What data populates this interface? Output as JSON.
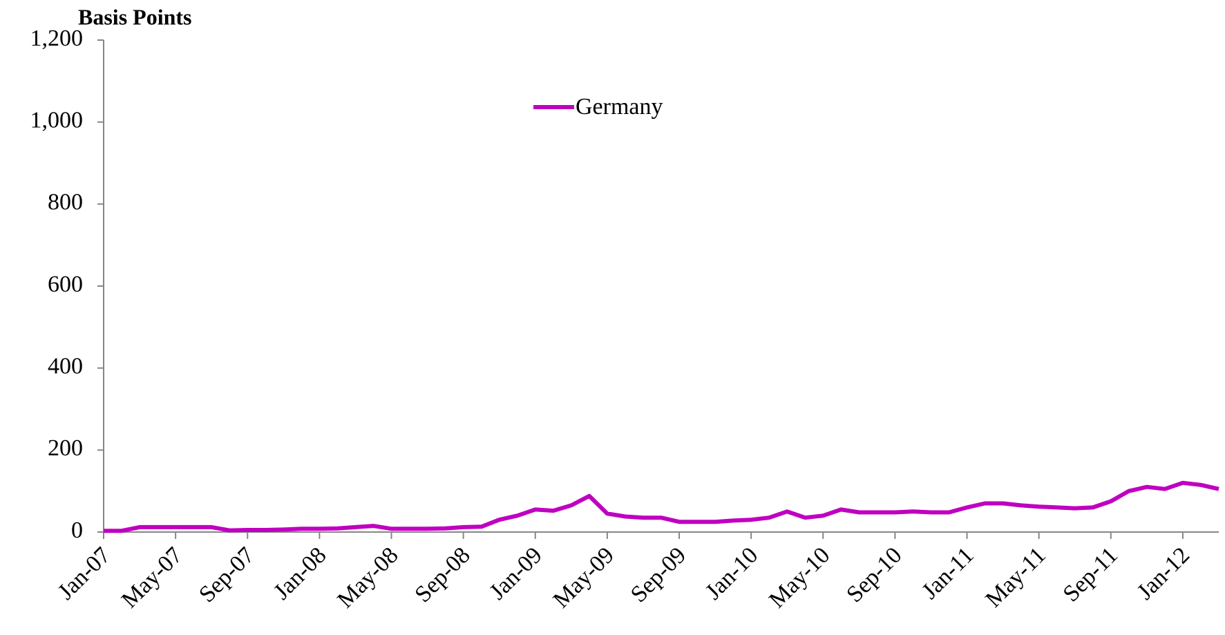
{
  "chart_data": {
    "type": "line",
    "title": "Basis Points",
    "categories": [
      "Jan-07",
      null,
      null,
      null,
      "May-07",
      null,
      null,
      null,
      "Sep-07",
      null,
      null,
      null,
      "Jan-08",
      null,
      null,
      null,
      "May-08",
      null,
      null,
      null,
      "Sep-08",
      null,
      null,
      null,
      "Jan-09",
      null,
      null,
      null,
      "May-09",
      null,
      null,
      null,
      "Sep-09",
      null,
      null,
      null,
      "Jan-10",
      null,
      null,
      null,
      "May-10",
      null,
      null,
      null,
      "Sep-10",
      null,
      null,
      null,
      "Jan-11",
      null,
      null,
      null,
      "May-11",
      null,
      null,
      null,
      "Sep-11",
      null,
      null,
      null,
      "Jan-12",
      null,
      null
    ],
    "series": [
      {
        "name": "Germany",
        "color": "#c000c0",
        "values": [
          3,
          3,
          12,
          12,
          12,
          12,
          12,
          4,
          5,
          5,
          6,
          8,
          8,
          9,
          12,
          15,
          8,
          8,
          8,
          9,
          12,
          13,
          30,
          40,
          55,
          52,
          65,
          88,
          45,
          38,
          35,
          35,
          25,
          25,
          25,
          28,
          30,
          35,
          50,
          35,
          40,
          55,
          48,
          48,
          48,
          50,
          48,
          48,
          60,
          70,
          70,
          65,
          62,
          60,
          58,
          60,
          75,
          100,
          110,
          105,
          120,
          115,
          105
        ]
      }
    ],
    "ylim": [
      0,
      1200
    ],
    "yticks": [
      0,
      200,
      400,
      600,
      800,
      {
        "value": 1000,
        "label": "1,000"
      },
      {
        "value": 1200,
        "label": "1,200"
      }
    ],
    "grid": false,
    "legend": "top"
  }
}
